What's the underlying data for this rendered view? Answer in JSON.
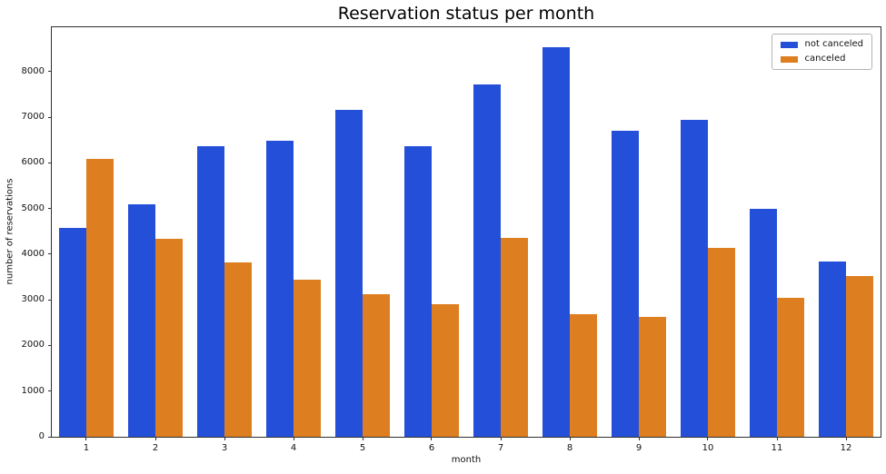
{
  "title": "Reservation status per month",
  "chart_data": {
    "type": "bar",
    "title": "Reservation status per month",
    "categories": [
      "1",
      "2",
      "3",
      "4",
      "5",
      "6",
      "7",
      "8",
      "9",
      "10",
      "11",
      "12"
    ],
    "series": [
      {
        "name": "not canceled",
        "color": "#2450d9",
        "values": [
          4580,
          5090,
          6360,
          6480,
          7170,
          6360,
          7720,
          8540,
          6700,
          6950,
          4990,
          3840
        ]
      },
      {
        "name": "canceled",
        "color": "#dd7e20",
        "values": [
          6080,
          4340,
          3820,
          3450,
          3130,
          2900,
          4360,
          2690,
          2630,
          4140,
          3040,
          3520
        ]
      }
    ],
    "xlabel": "month",
    "ylabel": "number of reservations",
    "ylim": [
      0,
      8970
    ],
    "yticks": [
      0,
      1000,
      2000,
      3000,
      4000,
      5000,
      6000,
      7000,
      8000
    ],
    "grid": false,
    "legend_position": "upper right",
    "group_width_fraction": 0.8,
    "axis_color": "#2f2f2f",
    "background_color": "#ffffff"
  }
}
